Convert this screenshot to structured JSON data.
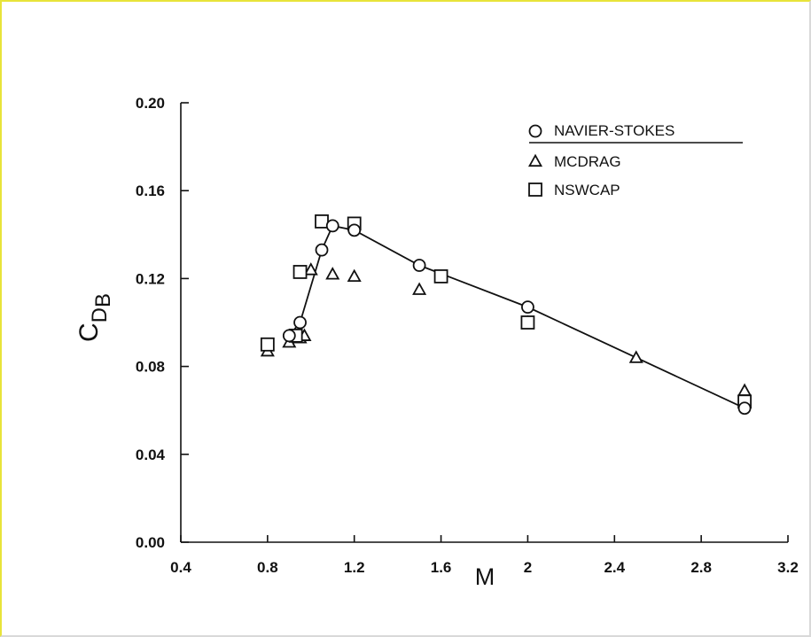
{
  "chart_data": {
    "type": "scatter",
    "xlabel": "M",
    "ylabel": {
      "main": "C",
      "sub": "D",
      "subsub": "B"
    },
    "xlim": [
      0.4,
      3.2
    ],
    "ylim": [
      0.0,
      0.2
    ],
    "x_ticks": [
      "0.4",
      "0.8",
      "1.2",
      "1.6",
      "2",
      "2.4",
      "2.8",
      "3.2"
    ],
    "x_tick_values": [
      0.4,
      0.8,
      1.2,
      1.6,
      2.0,
      2.4,
      2.8,
      3.2
    ],
    "y_ticks": [
      "0.00",
      "0.04",
      "0.08",
      "0.12",
      "0.16",
      "0.20"
    ],
    "y_tick_values": [
      0.0,
      0.04,
      0.08,
      0.12,
      0.16,
      0.2
    ],
    "legend_position": "top-right",
    "series": [
      {
        "name": "NAVIER-STOKES",
        "marker": "circle",
        "connected": true,
        "points": [
          [
            0.9,
            0.094
          ],
          [
            0.95,
            0.1
          ],
          [
            1.05,
            0.133
          ],
          [
            1.1,
            0.144
          ],
          [
            1.2,
            0.142
          ],
          [
            1.5,
            0.126
          ],
          [
            2.0,
            0.107
          ],
          [
            3.0,
            0.061
          ]
        ]
      },
      {
        "name": "MCDRAG",
        "marker": "triangle",
        "connected": false,
        "points": [
          [
            0.8,
            0.087
          ],
          [
            0.9,
            0.091
          ],
          [
            0.95,
            0.093
          ],
          [
            0.97,
            0.094
          ],
          [
            1.0,
            0.124
          ],
          [
            1.1,
            0.122
          ],
          [
            1.2,
            0.121
          ],
          [
            1.5,
            0.115
          ],
          [
            2.0,
            0.1
          ],
          [
            2.5,
            0.084
          ],
          [
            3.0,
            0.069
          ]
        ]
      },
      {
        "name": "NSWCAP",
        "marker": "square",
        "connected": false,
        "points": [
          [
            0.8,
            0.09
          ],
          [
            0.93,
            0.094
          ],
          [
            0.95,
            0.123
          ],
          [
            1.05,
            0.146
          ],
          [
            1.2,
            0.145
          ],
          [
            1.6,
            0.121
          ],
          [
            2.0,
            0.1
          ],
          [
            3.0,
            0.064
          ]
        ]
      }
    ]
  }
}
